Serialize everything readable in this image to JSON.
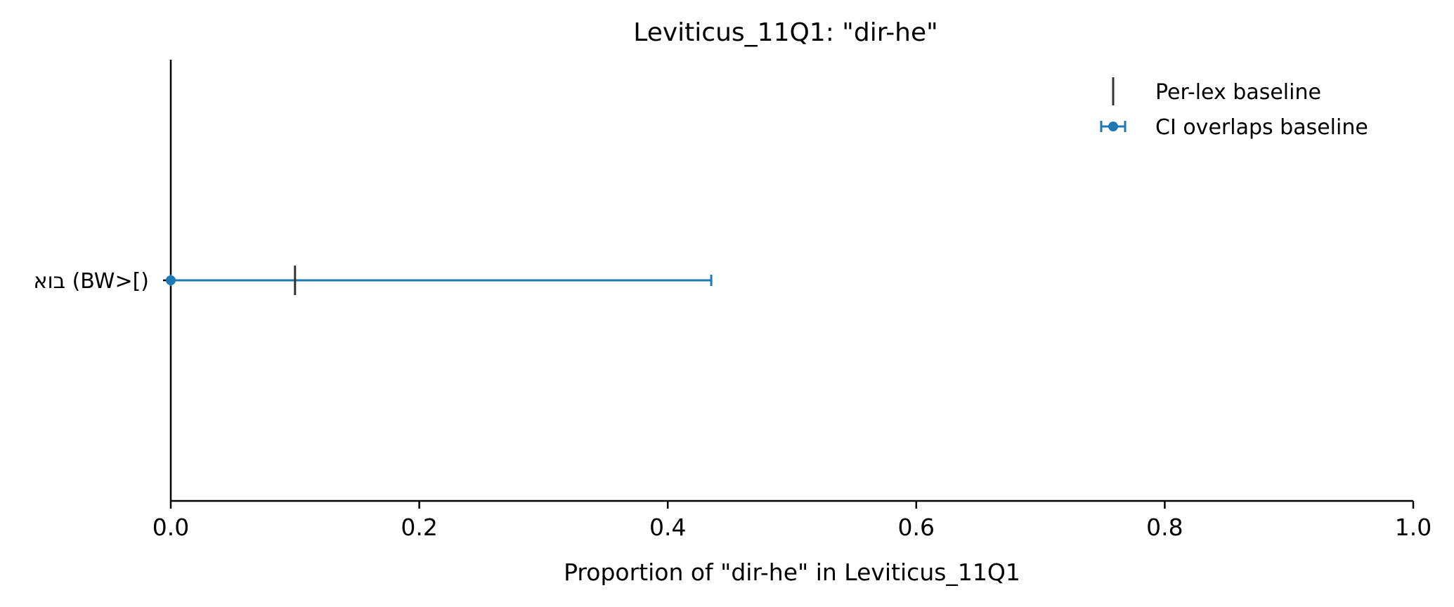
{
  "chart_data": {
    "type": "errorbar",
    "title": "Leviticus_11Q1: \"dir-he\"",
    "xlabel": "Proportion of \"dir-he\" in Leviticus_11Q1",
    "ylabel": "",
    "xlim": [
      0.0,
      1.0
    ],
    "x_ticks": [
      0.0,
      0.2,
      0.4,
      0.6,
      0.8,
      1.0
    ],
    "x_tick_labels": [
      "0.0",
      "0.2",
      "0.4",
      "0.6",
      "0.8",
      "1.0"
    ],
    "grid": false,
    "legend_position": "top-right",
    "legend": {
      "baseline_label": "Per-lex baseline",
      "ci_label": "CI overlaps baseline"
    },
    "categories": [
      "בוא (BW>[)"
    ],
    "points": [
      {
        "category": "בוא (BW>[)",
        "value": 0.0,
        "ci_low": 0.0,
        "ci_high": 0.435,
        "baseline": 0.1
      }
    ]
  },
  "colors": {
    "ci": "#1f77b4",
    "baseline": "#333333",
    "axis": "#000000"
  }
}
